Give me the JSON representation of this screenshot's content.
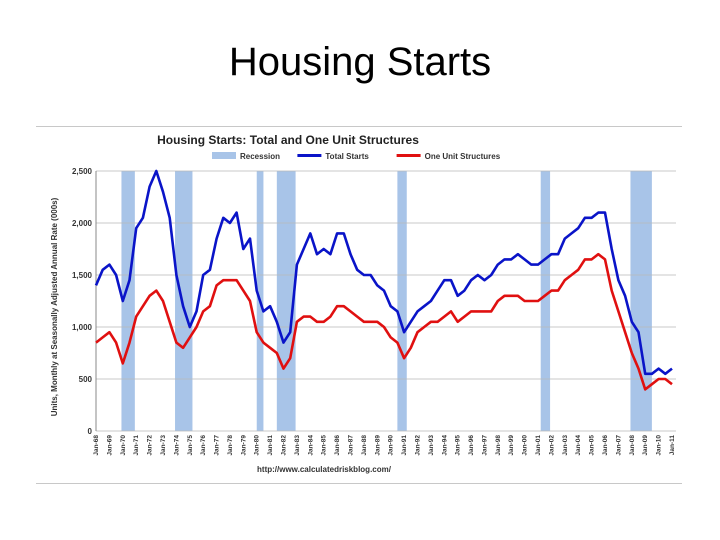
{
  "slide": {
    "title": "Housing Starts"
  },
  "chart_data": {
    "type": "line",
    "title": "Housing Starts: Total and One Unit Structures",
    "ylabel": "Units, Monthly at Seasonally Adjusted Annual Rate (000s)",
    "xlabel": "",
    "source": "http://www.calculatedriskblog.com/",
    "ylim": [
      0,
      2500
    ],
    "yticks": [
      0,
      500,
      1000,
      1500,
      2000,
      2500
    ],
    "ytick_labels": [
      "0",
      "500",
      "1,000",
      "1,500",
      "2,000",
      "2,500"
    ],
    "xlim": [
      1968,
      2011.3
    ],
    "xtick_labels": [
      "Jan-68",
      "Jan-69",
      "Jan-70",
      "Jan-71",
      "Jan-72",
      "Jan-73",
      "Jan-74",
      "Jan-75",
      "Jan-76",
      "Jan-77",
      "Jan-78",
      "Jan-79",
      "Jan-80",
      "Jan-81",
      "Jan-82",
      "Jan-83",
      "Jan-84",
      "Jan-85",
      "Jan-86",
      "Jan-87",
      "Jan-88",
      "Jan-89",
      "Jan-90",
      "Jan-91",
      "Jan-92",
      "Jan-93",
      "Jan-94",
      "Jan-95",
      "Jan-96",
      "Jan-97",
      "Jan-98",
      "Jan-99",
      "Jan-00",
      "Jan-01",
      "Jan-02",
      "Jan-03",
      "Jan-04",
      "Jan-05",
      "Jan-06",
      "Jan-07",
      "Jan-08",
      "Jan-09",
      "Jan-10",
      "Jan-11"
    ],
    "grid": true,
    "legend_position": "top",
    "recessions": [
      [
        1969.9,
        1970.9
      ],
      [
        1973.9,
        1975.2
      ],
      [
        1980.0,
        1980.5
      ],
      [
        1981.5,
        1982.9
      ],
      [
        1990.5,
        1991.2
      ],
      [
        2001.2,
        2001.9
      ],
      [
        2007.9,
        2009.5
      ]
    ],
    "series": [
      {
        "name": "Recession",
        "color": "#a8c4e8",
        "kind": "band",
        "x": [],
        "values": []
      },
      {
        "name": "Total Starts",
        "color": "#0a14c8",
        "kind": "line",
        "x": [
          1968.0,
          1968.5,
          1969.0,
          1969.5,
          1970.0,
          1970.5,
          1971.0,
          1971.5,
          1972.0,
          1972.5,
          1973.0,
          1973.5,
          1974.0,
          1974.5,
          1975.0,
          1975.5,
          1976.0,
          1976.5,
          1977.0,
          1977.5,
          1978.0,
          1978.5,
          1979.0,
          1979.5,
          1980.0,
          1980.5,
          1981.0,
          1981.5,
          1982.0,
          1982.5,
          1983.0,
          1983.5,
          1984.0,
          1984.5,
          1985.0,
          1985.5,
          1986.0,
          1986.5,
          1987.0,
          1987.5,
          1988.0,
          1988.5,
          1989.0,
          1989.5,
          1990.0,
          1990.5,
          1991.0,
          1991.5,
          1992.0,
          1992.5,
          1993.0,
          1993.5,
          1994.0,
          1994.5,
          1995.0,
          1995.5,
          1996.0,
          1996.5,
          1997.0,
          1997.5,
          1998.0,
          1998.5,
          1999.0,
          1999.5,
          2000.0,
          2000.5,
          2001.0,
          2001.5,
          2002.0,
          2002.5,
          2003.0,
          2003.5,
          2004.0,
          2004.5,
          2005.0,
          2005.5,
          2006.0,
          2006.5,
          2007.0,
          2007.5,
          2008.0,
          2008.5,
          2009.0,
          2009.5,
          2010.0,
          2010.5,
          2011.0
        ],
        "values": [
          1400,
          1550,
          1600,
          1500,
          1250,
          1450,
          1950,
          2050,
          2350,
          2500,
          2300,
          2050,
          1500,
          1200,
          1000,
          1150,
          1500,
          1550,
          1850,
          2050,
          2000,
          2100,
          1750,
          1850,
          1350,
          1150,
          1200,
          1050,
          850,
          950,
          1600,
          1750,
          1900,
          1700,
          1750,
          1700,
          1900,
          1900,
          1700,
          1550,
          1500,
          1500,
          1400,
          1350,
          1200,
          1150,
          950,
          1050,
          1150,
          1200,
          1250,
          1350,
          1450,
          1450,
          1300,
          1350,
          1450,
          1500,
          1450,
          1500,
          1600,
          1650,
          1650,
          1700,
          1650,
          1600,
          1600,
          1650,
          1700,
          1700,
          1850,
          1900,
          1950,
          2050,
          2050,
          2100,
          2100,
          1750,
          1450,
          1300,
          1050,
          950,
          550,
          550,
          600,
          550,
          600
        ]
      },
      {
        "name": "One Unit Structures",
        "color": "#e01010",
        "kind": "line",
        "x": [
          1968.0,
          1968.5,
          1969.0,
          1969.5,
          1970.0,
          1970.5,
          1971.0,
          1971.5,
          1972.0,
          1972.5,
          1973.0,
          1973.5,
          1974.0,
          1974.5,
          1975.0,
          1975.5,
          1976.0,
          1976.5,
          1977.0,
          1977.5,
          1978.0,
          1978.5,
          1979.0,
          1979.5,
          1980.0,
          1980.5,
          1981.0,
          1981.5,
          1982.0,
          1982.5,
          1983.0,
          1983.5,
          1984.0,
          1984.5,
          1985.0,
          1985.5,
          1986.0,
          1986.5,
          1987.0,
          1987.5,
          1988.0,
          1988.5,
          1989.0,
          1989.5,
          1990.0,
          1990.5,
          1991.0,
          1991.5,
          1992.0,
          1992.5,
          1993.0,
          1993.5,
          1994.0,
          1994.5,
          1995.0,
          1995.5,
          1996.0,
          1996.5,
          1997.0,
          1997.5,
          1998.0,
          1998.5,
          1999.0,
          1999.5,
          2000.0,
          2000.5,
          2001.0,
          2001.5,
          2002.0,
          2002.5,
          2003.0,
          2003.5,
          2004.0,
          2004.5,
          2005.0,
          2005.5,
          2006.0,
          2006.5,
          2007.0,
          2007.5,
          2008.0,
          2008.5,
          2009.0,
          2009.5,
          2010.0,
          2010.5,
          2011.0
        ],
        "values": [
          850,
          900,
          950,
          850,
          650,
          850,
          1100,
          1200,
          1300,
          1350,
          1250,
          1050,
          850,
          800,
          900,
          1000,
          1150,
          1200,
          1400,
          1450,
          1450,
          1450,
          1350,
          1250,
          950,
          850,
          800,
          750,
          600,
          700,
          1050,
          1100,
          1100,
          1050,
          1050,
          1100,
          1200,
          1200,
          1150,
          1100,
          1050,
          1050,
          1050,
          1000,
          900,
          850,
          700,
          800,
          950,
          1000,
          1050,
          1050,
          1100,
          1150,
          1050,
          1100,
          1150,
          1150,
          1150,
          1150,
          1250,
          1300,
          1300,
          1300,
          1250,
          1250,
          1250,
          1300,
          1350,
          1350,
          1450,
          1500,
          1550,
          1650,
          1650,
          1700,
          1650,
          1350,
          1150,
          950,
          750,
          600,
          400,
          450,
          500,
          500,
          450
        ]
      }
    ]
  }
}
